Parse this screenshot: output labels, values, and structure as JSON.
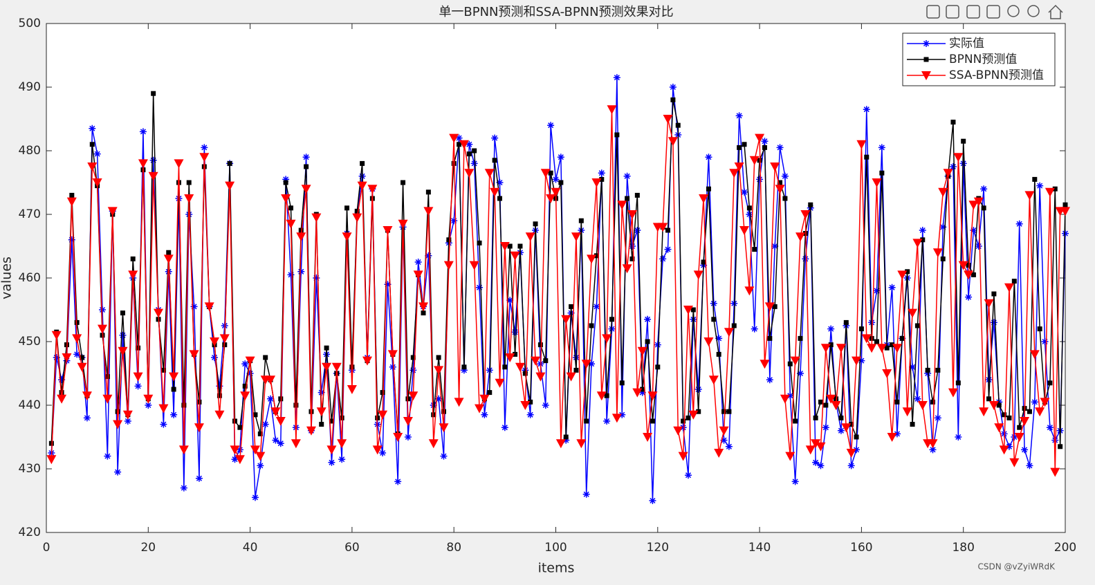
{
  "chart_data": {
    "type": "line",
    "title": "单一BPNN预测和SSA-BPNN预测效果对比",
    "x_label": "items",
    "y_label": "values",
    "watermark": "CSDN @vZyiWRdK",
    "legend": "upper right",
    "xlim": [
      0,
      200
    ],
    "xticks": [
      0,
      20,
      40,
      60,
      80,
      100,
      120,
      140,
      160,
      180,
      200
    ],
    "ylim": [
      420,
      500
    ],
    "yticks": [
      420,
      430,
      440,
      450,
      460,
      470,
      480,
      490,
      500
    ],
    "x": [
      1,
      2,
      3,
      4,
      5,
      6,
      7,
      8,
      9,
      10,
      11,
      12,
      13,
      14,
      15,
      16,
      17,
      18,
      19,
      20,
      21,
      22,
      23,
      24,
      25,
      26,
      27,
      28,
      29,
      30,
      31,
      32,
      33,
      34,
      35,
      36,
      37,
      38,
      39,
      40,
      41,
      42,
      43,
      44,
      45,
      46,
      47,
      48,
      49,
      50,
      51,
      52,
      53,
      54,
      55,
      56,
      57,
      58,
      59,
      60,
      61,
      62,
      63,
      64,
      65,
      66,
      67,
      68,
      69,
      70,
      71,
      72,
      73,
      74,
      75,
      76,
      77,
      78,
      79,
      80,
      81,
      82,
      83,
      84,
      85,
      86,
      87,
      88,
      89,
      90,
      91,
      92,
      93,
      94,
      95,
      96,
      97,
      98,
      99,
      100,
      101,
      102,
      103,
      104,
      105,
      106,
      107,
      108,
      109,
      110,
      111,
      112,
      113,
      114,
      115,
      116,
      117,
      118,
      119,
      120,
      121,
      122,
      123,
      124,
      125,
      126,
      127,
      128,
      129,
      130,
      131,
      132,
      133,
      134,
      135,
      136,
      137,
      138,
      139,
      140,
      141,
      142,
      143,
      144,
      145,
      146,
      147,
      148,
      149,
      150,
      151,
      152,
      153,
      154,
      155,
      156,
      157,
      158,
      159,
      160,
      161,
      162,
      163,
      164,
      165,
      166,
      167,
      168,
      169,
      170,
      171,
      172,
      173,
      174,
      175,
      176,
      177,
      178,
      179,
      180,
      181,
      182,
      183,
      184,
      185,
      186,
      187,
      188,
      189,
      190,
      191,
      192,
      193,
      194,
      195,
      196,
      197,
      198,
      199,
      200
    ],
    "series": [
      {
        "name": "实际值",
        "color": "#0000ff",
        "marker": "star",
        "values": [
          432.5,
          447.5,
          444,
          447,
          466,
          448,
          447.5,
          438,
          483.5,
          479.5,
          455,
          432,
          470.5,
          429.5,
          451,
          437.5,
          460,
          443,
          483,
          440,
          478.5,
          455,
          437,
          461,
          438.5,
          472.5,
          427,
          470,
          455.5,
          428.5,
          480.5,
          455.5,
          447.5,
          443,
          452.5,
          478,
          431.5,
          433,
          446.5,
          445,
          425.5,
          430.5,
          437,
          441,
          434.5,
          434,
          475.5,
          460.5,
          436.5,
          461,
          479,
          436,
          460,
          442,
          448,
          431,
          445,
          431.5,
          467,
          445.5,
          470,
          476,
          447.5,
          474,
          437,
          432.5,
          459,
          446,
          428,
          468,
          435,
          445.5,
          462.5,
          455.5,
          463.5,
          440,
          441,
          432,
          465.5,
          469,
          482,
          445.5,
          481,
          478,
          458.5,
          438.5,
          445.5,
          482,
          475,
          436.5,
          456.5,
          451.5,
          464,
          445.5,
          438.5,
          467.5,
          446.5,
          440,
          484,
          475.5,
          479,
          434.5,
          454.5,
          447.5,
          467.5,
          426,
          446.5,
          455.5,
          476.5,
          437.5,
          452,
          491.5,
          438.5,
          476,
          465,
          467.5,
          442,
          453.5,
          425,
          449.5,
          463,
          464.5,
          490,
          482.5,
          436.5,
          429,
          453.5,
          442.5,
          462,
          479,
          456,
          450.5,
          434.5,
          433.5,
          456,
          485.5,
          473.5,
          470,
          452,
          475.5,
          481.5,
          444,
          465,
          480.5,
          476,
          441.5,
          428,
          445,
          463,
          471,
          431,
          430.5,
          436.5,
          452,
          440.5,
          436,
          452.5,
          430.5,
          433,
          447,
          486.5,
          453,
          458,
          480.5,
          449.5,
          458.5,
          435.5,
          450.5,
          460,
          446,
          441,
          467.5,
          445,
          433,
          438,
          468,
          476,
          477.5,
          435,
          478,
          457,
          467.5,
          465,
          474,
          444,
          453,
          440.5,
          435.5,
          433.5,
          435,
          468.5,
          433,
          430.5,
          440.5,
          474.5,
          450,
          436.5,
          434.5,
          436,
          467
        ]
      },
      {
        "name": "BPNN预测值",
        "color": "#000000",
        "marker": "square",
        "values": [
          434,
          451.5,
          442,
          449.5,
          473,
          453,
          447.5,
          441.5,
          481,
          474.5,
          451,
          444.5,
          470,
          439,
          454.5,
          438.5,
          463,
          449,
          477,
          441,
          489,
          453.5,
          445.5,
          464,
          442.5,
          475,
          440,
          475,
          448,
          440.5,
          477.5,
          455.5,
          449.5,
          441.5,
          449.5,
          478,
          437.5,
          436.5,
          443,
          447,
          438.5,
          435.5,
          447.5,
          444,
          439,
          441,
          475,
          471,
          440,
          467.5,
          477.5,
          439,
          470,
          437,
          449,
          437.5,
          445,
          438,
          471,
          446,
          470.5,
          478,
          447,
          472.5,
          438,
          442,
          467.5,
          448,
          435.5,
          475,
          441,
          447.5,
          460.5,
          454.5,
          473.5,
          438.5,
          447.5,
          439,
          466,
          478,
          481,
          446,
          479.5,
          480,
          465.5,
          441,
          442,
          478.5,
          472.5,
          446,
          465,
          448,
          465,
          445,
          440.5,
          468.5,
          449.5,
          447,
          476.5,
          472.5,
          475,
          435,
          455.5,
          445.5,
          469,
          437.5,
          452.5,
          463.5,
          475.5,
          441.5,
          453.5,
          482.5,
          443.5,
          472.5,
          463,
          473,
          442.5,
          450,
          437.5,
          446,
          468,
          467.5,
          488,
          484,
          437.5,
          438,
          455,
          439,
          462.5,
          474,
          453.5,
          448,
          439,
          439,
          452.5,
          480.5,
          481,
          471,
          464.5,
          478.5,
          480.5,
          450.5,
          455.5,
          475,
          472.5,
          446.5,
          437.5,
          450.5,
          467,
          471.5,
          438,
          440.5,
          440,
          449.5,
          441,
          438,
          453,
          437,
          435,
          452,
          479,
          450.5,
          450,
          476.5,
          449,
          449.5,
          440.5,
          450.5,
          461,
          437,
          452.5,
          466,
          445.5,
          440.5,
          445.5,
          463,
          476,
          484.5,
          443.5,
          481.5,
          462,
          460.5,
          472.5,
          471,
          441,
          457.5,
          440,
          438.5,
          438,
          459.5,
          436.5,
          439.5,
          439,
          475.5,
          452,
          440.5,
          443.5,
          474,
          433.5,
          471.5
        ]
      },
      {
        "name": "SSA-BPNN预测值",
        "color": "#ff0000",
        "marker": "triangle-down",
        "values": [
          431.5,
          451,
          441,
          447.5,
          472,
          450.5,
          446,
          441.5,
          477.5,
          475,
          452,
          441,
          470.5,
          437,
          448.5,
          438.5,
          460.5,
          444.5,
          478,
          441,
          476,
          454.5,
          439.5,
          463,
          444.5,
          478,
          433,
          472.5,
          448,
          436.5,
          479,
          455.5,
          450,
          438.5,
          450.5,
          474.5,
          433,
          431.5,
          441.5,
          447,
          433,
          432,
          444,
          444,
          439,
          437.5,
          472.5,
          468.5,
          434,
          466.5,
          474,
          436,
          469.5,
          439,
          446,
          433,
          446,
          434,
          466.5,
          442.5,
          469.5,
          474.5,
          447,
          474,
          433,
          438.5,
          467.5,
          448,
          435,
          468.5,
          437.5,
          441.5,
          460.5,
          455.5,
          470.5,
          434,
          445.5,
          436.5,
          462,
          482,
          440.5,
          481,
          476.5,
          462,
          439.5,
          441,
          476.5,
          473.5,
          443.5,
          465,
          447.5,
          463.5,
          446,
          440,
          466.5,
          447,
          444.5,
          476.5,
          472.5,
          473.5,
          434,
          453.5,
          444.5,
          466.5,
          434,
          446.5,
          463,
          475,
          441.5,
          450.5,
          486.5,
          438,
          471.5,
          461.5,
          470,
          442,
          448.5,
          435,
          441.5,
          468,
          468,
          485,
          481.5,
          436,
          432,
          455,
          438.5,
          460.5,
          472.5,
          450,
          444,
          432.5,
          436,
          451.5,
          476.5,
          477.5,
          467.5,
          458,
          478.5,
          482,
          446.5,
          455.5,
          477.5,
          474,
          441,
          432,
          447,
          466.5,
          470,
          433,
          434,
          433.5,
          449,
          441,
          440,
          449,
          436.5,
          432.5,
          447,
          481,
          450.5,
          449,
          475,
          449,
          445,
          435,
          449,
          460.5,
          439,
          454.5,
          465.5,
          440,
          434,
          434,
          464,
          473.5,
          476.5,
          442,
          479,
          462,
          460.5,
          471.5,
          472,
          439,
          456,
          440,
          436.5,
          433,
          458.5,
          431,
          435,
          437.5,
          473,
          448,
          439,
          440.5,
          473.5,
          429.5,
          470.5,
          470.5
        ]
      }
    ]
  }
}
